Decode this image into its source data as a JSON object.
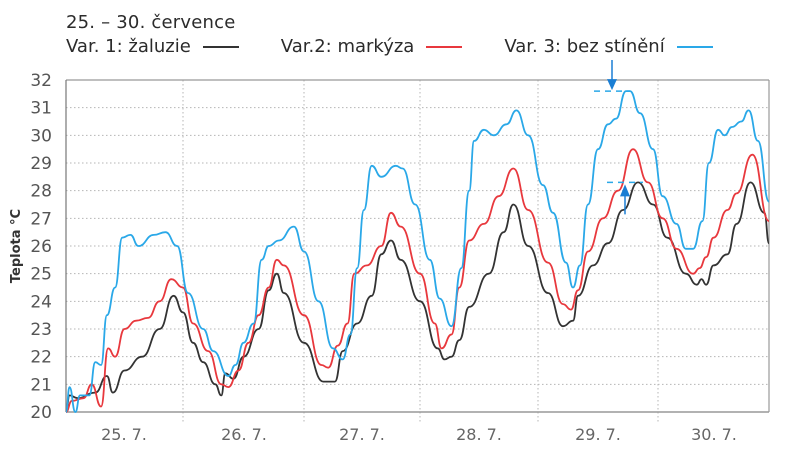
{
  "chart_data": {
    "type": "line",
    "title": "25. – 30. července",
    "xlabel": "",
    "ylabel": "Teplota °C",
    "ylim": [
      20,
      32
    ],
    "yticks": [
      20,
      21,
      22,
      23,
      24,
      25,
      26,
      27,
      28,
      29,
      30,
      31,
      32
    ],
    "grid": true,
    "legend_position": "top",
    "categories": [
      "25. 7.",
      "26. 7.",
      "27. 7.",
      "28. 7.",
      "29. 7.",
      "30. 7."
    ],
    "series": [
      {
        "name": "Var. 1: žaluzie",
        "color": "#333333",
        "points": [
          [
            0,
            20
          ],
          [
            0.03,
            20.6
          ],
          [
            0.1,
            20.5
          ],
          [
            0.25,
            20.7
          ],
          [
            0.35,
            21.3
          ],
          [
            0.4,
            20.7
          ],
          [
            0.5,
            21.5
          ],
          [
            0.65,
            22
          ],
          [
            0.8,
            23
          ],
          [
            0.92,
            24.2
          ],
          [
            1.0,
            23.6
          ],
          [
            1.1,
            22.5
          ],
          [
            1.2,
            21.8
          ],
          [
            1.32,
            21
          ],
          [
            1.38,
            20.6
          ],
          [
            1.42,
            21.4
          ],
          [
            1.5,
            21.2
          ],
          [
            1.6,
            22
          ],
          [
            1.75,
            23
          ],
          [
            1.85,
            24.4
          ],
          [
            1.93,
            25
          ],
          [
            2.0,
            24.3
          ],
          [
            2.2,
            22.5
          ],
          [
            2.4,
            21.1
          ],
          [
            2.52,
            21.1
          ],
          [
            2.6,
            22.2
          ],
          [
            2.75,
            23.2
          ],
          [
            2.9,
            24.2
          ],
          [
            3.0,
            25.7
          ],
          [
            3.1,
            26.2
          ],
          [
            3.2,
            25.5
          ],
          [
            3.4,
            24
          ],
          [
            3.58,
            22.3
          ],
          [
            3.65,
            21.9
          ],
          [
            3.72,
            22
          ],
          [
            3.8,
            22.6
          ],
          [
            3.9,
            23.8
          ],
          [
            4.1,
            25
          ],
          [
            4.25,
            26.5
          ],
          [
            4.35,
            27.5
          ],
          [
            4.5,
            26
          ],
          [
            4.7,
            24.3
          ],
          [
            4.85,
            23.1
          ],
          [
            4.95,
            23.3
          ],
          [
            5.0,
            24.2
          ],
          [
            5.15,
            25.3
          ],
          [
            5.3,
            26.1
          ],
          [
            5.45,
            27.3
          ],
          [
            5.6,
            28.3
          ],
          [
            5.75,
            27.5
          ],
          [
            5.9,
            26.3
          ],
          [
            6.1,
            25
          ],
          [
            6.22,
            24.6
          ],
          [
            6.27,
            24.8
          ],
          [
            6.32,
            24.6
          ],
          [
            6.4,
            25.3
          ],
          [
            6.55,
            25.7
          ],
          [
            6.65,
            26.8
          ],
          [
            6.8,
            28.3
          ],
          [
            6.95,
            27.2
          ],
          [
            7.0,
            26.1
          ]
        ]
      },
      {
        "name": "Var.2: markýza",
        "color": "#e8383d",
        "points": [
          [
            0,
            20
          ],
          [
            0.05,
            20.4
          ],
          [
            0.15,
            20.5
          ],
          [
            0.22,
            21
          ],
          [
            0.3,
            20.2
          ],
          [
            0.36,
            22.3
          ],
          [
            0.42,
            22
          ],
          [
            0.5,
            23
          ],
          [
            0.6,
            23.3
          ],
          [
            0.7,
            23.4
          ],
          [
            0.8,
            24
          ],
          [
            0.9,
            24.8
          ],
          [
            1.0,
            24.5
          ],
          [
            1.1,
            23.2
          ],
          [
            1.25,
            22.2
          ],
          [
            1.38,
            21
          ],
          [
            1.45,
            20.9
          ],
          [
            1.55,
            21.5
          ],
          [
            1.65,
            22.5
          ],
          [
            1.75,
            23.5
          ],
          [
            1.85,
            24.5
          ],
          [
            1.93,
            25.5
          ],
          [
            2.0,
            25.3
          ],
          [
            2.2,
            23.5
          ],
          [
            2.38,
            21.7
          ],
          [
            2.45,
            21.6
          ],
          [
            2.55,
            22.4
          ],
          [
            2.65,
            23.2
          ],
          [
            2.72,
            25
          ],
          [
            2.85,
            25.3
          ],
          [
            3.0,
            26
          ],
          [
            3.1,
            27.2
          ],
          [
            3.2,
            26.7
          ],
          [
            3.4,
            25
          ],
          [
            3.55,
            23.2
          ],
          [
            3.62,
            22.3
          ],
          [
            3.72,
            22.8
          ],
          [
            3.8,
            24.5
          ],
          [
            3.9,
            26.2
          ],
          [
            4.05,
            26.8
          ],
          [
            4.2,
            27.8
          ],
          [
            4.35,
            28.8
          ],
          [
            4.5,
            27.3
          ],
          [
            4.7,
            25.4
          ],
          [
            4.85,
            23.9
          ],
          [
            4.93,
            23.7
          ],
          [
            5.0,
            24.4
          ],
          [
            5.1,
            25.8
          ],
          [
            5.25,
            27
          ],
          [
            5.4,
            28
          ],
          [
            5.55,
            29.5
          ],
          [
            5.7,
            28.3
          ],
          [
            5.85,
            27
          ],
          [
            6.0,
            25.9
          ],
          [
            6.18,
            25
          ],
          [
            6.25,
            25.2
          ],
          [
            6.32,
            25.6
          ],
          [
            6.4,
            26.3
          ],
          [
            6.55,
            27.3
          ],
          [
            6.65,
            27.9
          ],
          [
            6.82,
            29.3
          ],
          [
            7.0,
            26.9
          ]
        ]
      },
      {
        "name": "Var. 3: bez stínění",
        "color": "#2aa8e8",
        "points": [
          [
            0,
            20
          ],
          [
            0.03,
            20.9
          ],
          [
            0.08,
            20
          ],
          [
            0.12,
            20.6
          ],
          [
            0.2,
            20.6
          ],
          [
            0.25,
            21.8
          ],
          [
            0.3,
            21.7
          ],
          [
            0.35,
            23.5
          ],
          [
            0.42,
            24.5
          ],
          [
            0.48,
            26.3
          ],
          [
            0.55,
            26.4
          ],
          [
            0.62,
            26
          ],
          [
            0.75,
            26.4
          ],
          [
            0.85,
            26.5
          ],
          [
            0.95,
            26
          ],
          [
            1.05,
            24.3
          ],
          [
            1.2,
            23
          ],
          [
            1.3,
            22.2
          ],
          [
            1.45,
            21.3
          ],
          [
            1.52,
            21.7
          ],
          [
            1.6,
            22.5
          ],
          [
            1.7,
            23.2
          ],
          [
            1.78,
            25.5
          ],
          [
            1.85,
            26
          ],
          [
            1.95,
            26.2
          ],
          [
            2.1,
            26.7
          ],
          [
            2.2,
            25.8
          ],
          [
            2.35,
            24
          ],
          [
            2.5,
            22.3
          ],
          [
            2.6,
            21.9
          ],
          [
            2.68,
            22.8
          ],
          [
            2.75,
            25.2
          ],
          [
            2.82,
            27.3
          ],
          [
            2.9,
            28.9
          ],
          [
            3.0,
            28.5
          ],
          [
            3.15,
            28.9
          ],
          [
            3.22,
            28.8
          ],
          [
            3.35,
            27.5
          ],
          [
            3.5,
            25.5
          ],
          [
            3.6,
            24.1
          ],
          [
            3.72,
            23.1
          ],
          [
            3.82,
            25.2
          ],
          [
            3.9,
            28
          ],
          [
            3.95,
            29.8
          ],
          [
            4.05,
            30.2
          ],
          [
            4.15,
            30.0
          ],
          [
            4.28,
            30.4
          ],
          [
            4.38,
            30.9
          ],
          [
            4.5,
            30
          ],
          [
            4.65,
            28.2
          ],
          [
            4.75,
            27.2
          ],
          [
            4.88,
            25.4
          ],
          [
            4.95,
            24.5
          ],
          [
            5.02,
            25.3
          ],
          [
            5.1,
            27.5
          ],
          [
            5.2,
            29.5
          ],
          [
            5.3,
            30.4
          ],
          [
            5.38,
            30.6
          ],
          [
            5.48,
            31.6
          ],
          [
            5.52,
            31.6
          ],
          [
            5.62,
            30.8
          ],
          [
            5.75,
            29.5
          ],
          [
            5.85,
            27.8
          ],
          [
            6.0,
            26.8
          ],
          [
            6.1,
            25.9
          ],
          [
            6.18,
            25.9
          ],
          [
            6.28,
            26.9
          ],
          [
            6.35,
            29
          ],
          [
            6.45,
            30.2
          ],
          [
            6.52,
            30
          ],
          [
            6.6,
            30.3
          ],
          [
            6.7,
            30.5
          ],
          [
            6.78,
            30.9
          ],
          [
            6.88,
            29.8
          ],
          [
            7.0,
            27.6
          ]
        ]
      }
    ],
    "annotations": [
      {
        "type": "arrow-down",
        "series": "Var. 3: bez stínění",
        "x": 5.5,
        "y": 31.6,
        "color": "#1a7ed4"
      },
      {
        "type": "arrow-up",
        "series": "Var. 1: žaluzie",
        "x": 5.6,
        "y": 28.3,
        "color": "#1a7ed4"
      }
    ]
  },
  "header": {
    "title": "25. – 30. července"
  },
  "legend": [
    {
      "label": "Var. 1: žaluzie",
      "color": "#333333"
    },
    {
      "label": "Var.2: markýza",
      "color": "#e8383d"
    },
    {
      "label": "Var. 3: bez stínění",
      "color": "#2aa8e8"
    }
  ],
  "axes": {
    "y_title": "Teplota °C",
    "y_ticks": [
      "20",
      "21",
      "22",
      "23",
      "24",
      "25",
      "26",
      "27",
      "28",
      "29",
      "30",
      "31",
      "32"
    ],
    "x_ticks": [
      "25. 7.",
      "26. 7.",
      "27. 7.",
      "28. 7.",
      "29. 7.",
      "30. 7."
    ]
  }
}
